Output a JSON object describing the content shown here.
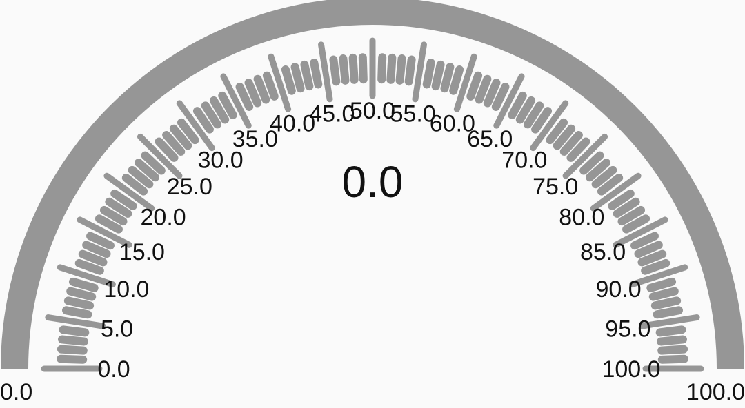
{
  "gauge": {
    "value_text": "0.0",
    "value": 0,
    "min": 0,
    "max": 100,
    "min_label": "0.0",
    "max_label": "100.0",
    "scale_labels": [
      "0.0",
      "5.0",
      "10.0",
      "15.0",
      "20.0",
      "25.0",
      "30.0",
      "35.0",
      "40.0",
      "45.0",
      "50.0",
      "55.0",
      "60.0",
      "65.0",
      "70.0",
      "75.0",
      "80.0",
      "85.0",
      "90.0",
      "95.0",
      "100.0"
    ],
    "colors": {
      "arc": "#969696",
      "ticks": "#969696",
      "text": "#111111",
      "background": "#fafafa"
    }
  }
}
